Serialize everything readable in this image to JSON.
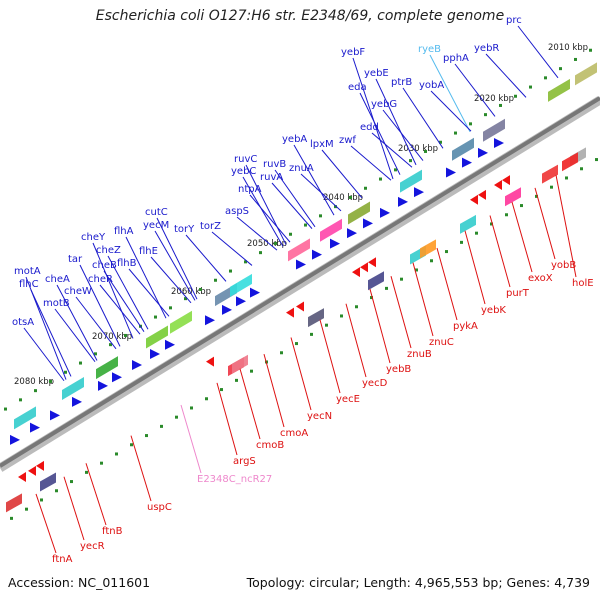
{
  "title": "Escherichia coli O127:H6 str. E2348/69, complete genome",
  "accession": "Accession: NC_011601",
  "summary": "Topology: circular; Length: 4,965,553 bp; Genes: 4,739",
  "colors": {
    "top_label": "#1a1acc",
    "top_special": "#55bbee",
    "bottom_label": "#dd1111",
    "bottom_special": "#ee88cc",
    "backbone": "#777777",
    "tick": "#2a8a2a"
  },
  "scale_ticks": [
    "2010 kbp",
    "2020 kbp",
    "2030 kbp",
    "2040 kbp",
    "2050 kbp",
    "2060 kbp",
    "2070 kbp",
    "2080 kbp"
  ],
  "top_labels": [
    "prc",
    "yebR",
    "pphA",
    "ryeB",
    "yobA",
    "ptrB",
    "yebE",
    "yebF",
    "eda",
    "yebG",
    "edd",
    "zwf",
    "lpxM",
    "yebA",
    "znuA",
    "ruvB",
    "ruvC",
    "yebC",
    "ruvA",
    "ntpA",
    "aspS",
    "torZ",
    "torY",
    "cutC",
    "yecM",
    "flhA",
    "flhB",
    "flhE",
    "cheY",
    "cheZ",
    "cheB",
    "tar",
    "cheR",
    "cheW",
    "cheA",
    "motA",
    "flhC",
    "motB",
    "otsA"
  ],
  "bottom_labels": [
    "holE",
    "yobB",
    "exoX",
    "purT",
    "yebK",
    "pykA",
    "znuC",
    "znuB",
    "yebB",
    "yecD",
    "yecE",
    "yecN",
    "cmoA",
    "cmoB",
    "argS",
    "E2348C_ncR27",
    "uspC",
    "ftnB",
    "yecR",
    "ftnA"
  ]
}
